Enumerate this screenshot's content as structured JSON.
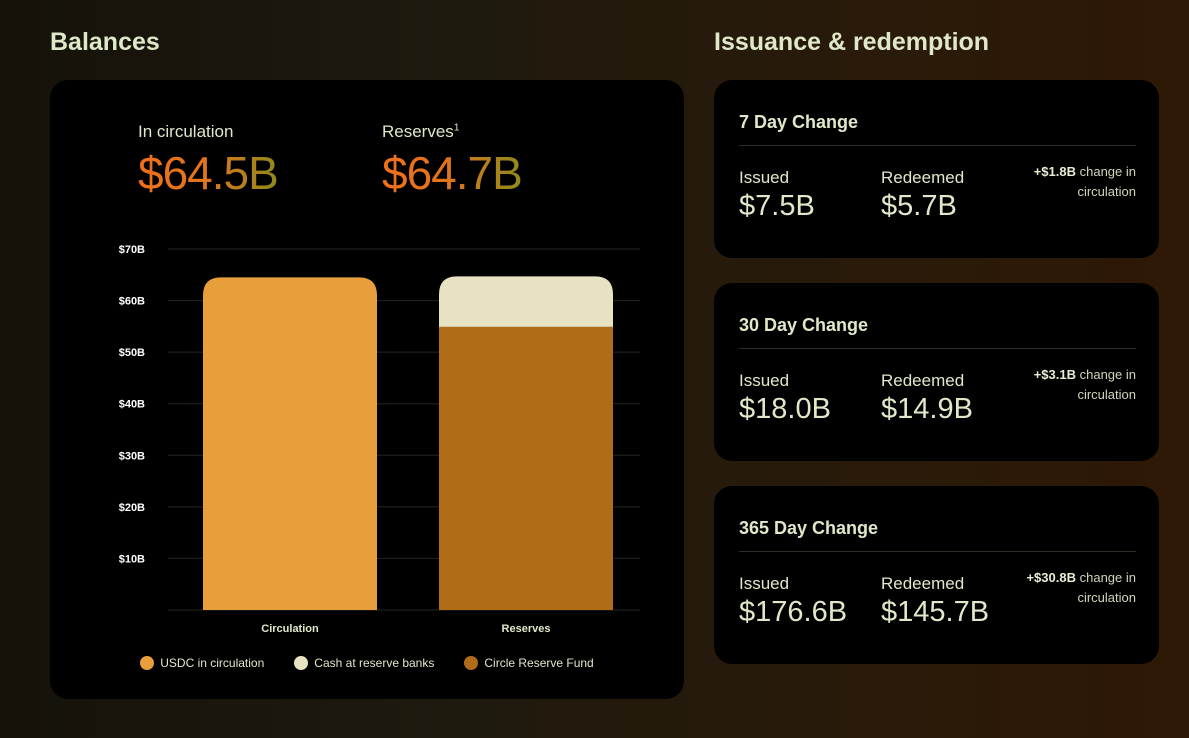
{
  "balances": {
    "section_title": "Balances",
    "circulation_label": "In circulation",
    "circulation_value": "$64.5B",
    "reserves_label": "Reserves",
    "reserves_footnote": "1",
    "reserves_value": "$64.7B"
  },
  "chart_data": {
    "type": "bar",
    "categories": [
      "Circulation",
      "Reserves"
    ],
    "series": [
      {
        "name": "USDC in circulation",
        "values": [
          64.5,
          0
        ],
        "color": "#e89e3a"
      },
      {
        "name": "Circle Reserve Fund",
        "values": [
          0,
          54.9
        ],
        "color": "#b06c16"
      },
      {
        "name": "Cash at reserve banks",
        "values": [
          0,
          9.8
        ],
        "color": "#e6e2c2"
      }
    ],
    "stacked": true,
    "y_ticks": [
      "$10B",
      "$20B",
      "$30B",
      "$40B",
      "$50B",
      "$60B",
      "$70B"
    ],
    "y_tick_values": [
      10,
      20,
      30,
      40,
      50,
      60,
      70
    ],
    "ylim": [
      0,
      70
    ],
    "grid": true,
    "legend": [
      {
        "label": "USDC in circulation",
        "color": "#e89e3a"
      },
      {
        "label": "Cash at reserve banks",
        "color": "#e6e2c2"
      },
      {
        "label": "Circle Reserve Fund",
        "color": "#b06c16"
      }
    ],
    "legend_position": "bottom"
  },
  "issuance": {
    "section_title": "Issuance & redemption",
    "cards": [
      {
        "title": "7 Day Change",
        "issued_label": "Issued",
        "issued_value": "$7.5B",
        "redeemed_label": "Redeemed",
        "redeemed_value": "$5.7B",
        "change_amount": "+$1.8B",
        "change_text": "change in circulation"
      },
      {
        "title": "30 Day Change",
        "issued_label": "Issued",
        "issued_value": "$18.0B",
        "redeemed_label": "Redeemed",
        "redeemed_value": "$14.9B",
        "change_amount": "+$3.1B",
        "change_text": "change in circulation"
      },
      {
        "title": "365 Day Change",
        "issued_label": "Issued",
        "issued_value": "$176.6B",
        "redeemed_label": "Redeemed",
        "redeemed_value": "$145.7B",
        "change_amount": "+$30.8B",
        "change_text": "change in circulation"
      }
    ]
  }
}
